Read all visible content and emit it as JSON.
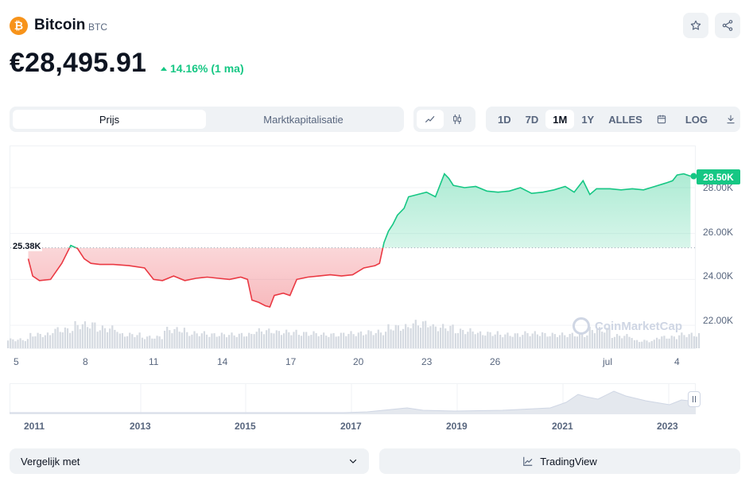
{
  "coin": {
    "logo_glyph": "₿",
    "name": "Bitcoin",
    "symbol": "BTC",
    "price": "€28,495.91",
    "change": "14.16% (1 ma)",
    "change_color": "#16c784"
  },
  "header_actions": {
    "favorite_icon": "star-icon",
    "share_icon": "share-icon"
  },
  "chart_tabs": {
    "tabs": [
      "Prijs",
      "Marktkapitalisatie"
    ],
    "active": "Prijs"
  },
  "chart_type_icons": [
    "line-chart-icon",
    "candlestick-icon"
  ],
  "ranges": {
    "buttons": [
      "1D",
      "7D",
      "1M",
      "1Y",
      "ALLES"
    ],
    "active": "1M",
    "calendar_icon": "calendar-icon",
    "log_label": "LOG",
    "download_icon": "download-icon"
  },
  "chart": {
    "reference_label": "25.38K",
    "current_label": "28.50K",
    "watermark": "CoinMarketCap",
    "y_ticks": [
      "28.00K",
      "26.00K",
      "24.00K",
      "22.00K"
    ],
    "x_ticks": [
      "5",
      "8",
      "11",
      "14",
      "17",
      "20",
      "23",
      "26",
      "jul",
      "4"
    ]
  },
  "chart_data": {
    "type": "area",
    "title": "Bitcoin BTC price (1M)",
    "currency": "EUR",
    "reference_value": 25380,
    "current_value": 28500,
    "ylim": [
      21000,
      29800
    ],
    "y_ticks": [
      22000,
      24000,
      26000,
      28000
    ],
    "x_ticks": [
      "5",
      "8",
      "11",
      "14",
      "17",
      "20",
      "23",
      "26",
      "jul",
      "4"
    ],
    "x_range_days": [
      4.2,
      34.8
    ],
    "series": [
      {
        "name": "price",
        "x": [
          5.0,
          5.2,
          5.5,
          6.0,
          6.5,
          6.9,
          7.2,
          7.5,
          7.8,
          8.2,
          8.8,
          9.5,
          10.2,
          10.6,
          11.0,
          11.5,
          12.0,
          12.5,
          13.0,
          13.5,
          14.0,
          14.5,
          14.8,
          15.0,
          15.3,
          15.6,
          15.8,
          16.0,
          16.4,
          16.7,
          17.0,
          17.5,
          18.0,
          18.5,
          19.0,
          19.5,
          20.0,
          20.5,
          20.7,
          20.9,
          21.1,
          21.3,
          21.5,
          21.8,
          22.0,
          22.4,
          22.8,
          23.2,
          23.6,
          23.8,
          24.0,
          24.5,
          25.0,
          25.5,
          26.0,
          26.5,
          27.0,
          27.5,
          28.0,
          28.5,
          29.0,
          29.4,
          29.8,
          30.1,
          30.4,
          31.0,
          31.5,
          32.0,
          32.5,
          33.0,
          33.5,
          33.8,
          34.0,
          34.3,
          34.6
        ],
        "values": [
          24900,
          24150,
          23950,
          24000,
          24700,
          25480,
          25350,
          24900,
          24700,
          24650,
          24650,
          24600,
          24500,
          24000,
          23950,
          24150,
          23950,
          24050,
          24100,
          24050,
          24000,
          24100,
          24000,
          23100,
          23000,
          22850,
          22800,
          23300,
          23400,
          23300,
          24000,
          24100,
          24150,
          24200,
          24150,
          24200,
          24500,
          24600,
          24700,
          25600,
          26100,
          26400,
          26800,
          27100,
          27600,
          27700,
          27800,
          27600,
          28600,
          28400,
          28100,
          28000,
          28050,
          27850,
          27800,
          27850,
          28000,
          27750,
          27800,
          27900,
          28050,
          27800,
          28300,
          27700,
          27950,
          27950,
          27900,
          27950,
          27900,
          28050,
          28200,
          28300,
          28550,
          28600,
          28500
        ]
      },
      {
        "name": "volume",
        "x": [
          4.5,
          5.5,
          6.5,
          7.5,
          8.5,
          9.5,
          10.5,
          11.5,
          12.5,
          13.5,
          14.5,
          15.5,
          16.5,
          17.5,
          18.5,
          19.5,
          20.5,
          21.5,
          22.5,
          23.5,
          24.5,
          25.5,
          26.5,
          27.5,
          28.5,
          29.5,
          30.5,
          31.5,
          32.5,
          33.5,
          34.5
        ],
        "values": [
          0.35,
          0.55,
          0.75,
          0.95,
          0.8,
          0.55,
          0.45,
          0.75,
          0.6,
          0.55,
          0.55,
          0.7,
          0.65,
          0.6,
          0.55,
          0.6,
          0.65,
          0.85,
          1.0,
          0.85,
          0.7,
          0.6,
          0.55,
          0.6,
          0.55,
          0.55,
          0.75,
          0.5,
          0.3,
          0.45,
          0.55
        ]
      }
    ]
  },
  "navigator": {
    "years": [
      "2011",
      "2013",
      "2015",
      "2017",
      "2019",
      "2021",
      "2023"
    ]
  },
  "bottom": {
    "compare_label": "Vergelijk met",
    "tradingview_label": "TradingView"
  }
}
